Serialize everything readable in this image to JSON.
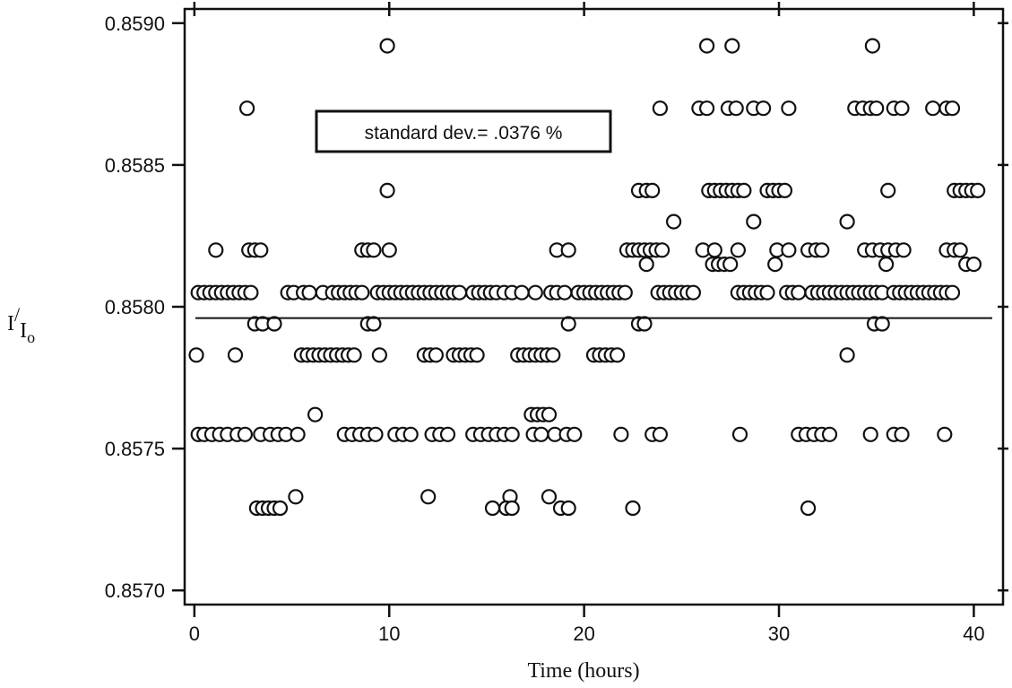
{
  "chart_data": {
    "type": "scatter",
    "title": "",
    "xlabel": "Time  (hours)",
    "ylabel": "I/Io",
    "ylabel_parts": {
      "main": "I",
      "slash": "/",
      "sub": "I",
      "subscript": "o"
    },
    "xlim": [
      -0.5,
      41.5
    ],
    "ylim": [
      0.85695,
      0.85905
    ],
    "x_ticks": [
      0,
      10,
      20,
      30,
      40
    ],
    "x_tick_labels": [
      "0",
      "10",
      "20",
      "30",
      "40"
    ],
    "y_ticks": [
      0.857,
      0.8575,
      0.858,
      0.8585,
      0.859
    ],
    "y_tick_labels": [
      "0.8570",
      "0.8575",
      "0.8580",
      "0.8585",
      "0.8590"
    ],
    "grid": false,
    "marker": "open-circle",
    "mean_line": {
      "y": 0.85796
    },
    "annotation": {
      "text": "standard dev.= .0376 %"
    },
    "series": [
      {
        "points": [
          [
            0.1,
            0.85783
          ],
          [
            2.1,
            0.85783
          ],
          [
            9.5,
            0.85783
          ],
          [
            33.5,
            0.85783
          ],
          [
            5.5,
            0.85783
          ],
          [
            5.8,
            0.85783
          ],
          [
            6.1,
            0.85783
          ],
          [
            6.4,
            0.85783
          ],
          [
            6.7,
            0.85783
          ],
          [
            7.0,
            0.85783
          ],
          [
            7.3,
            0.85783
          ],
          [
            7.6,
            0.85783
          ],
          [
            7.9,
            0.85783
          ],
          [
            8.2,
            0.85783
          ],
          [
            11.8,
            0.85783
          ],
          [
            12.1,
            0.85783
          ],
          [
            12.4,
            0.85783
          ],
          [
            13.3,
            0.85783
          ],
          [
            13.6,
            0.85783
          ],
          [
            13.9,
            0.85783
          ],
          [
            14.2,
            0.85783
          ],
          [
            14.5,
            0.85783
          ],
          [
            16.6,
            0.85783
          ],
          [
            16.9,
            0.85783
          ],
          [
            17.2,
            0.85783
          ],
          [
            17.5,
            0.85783
          ],
          [
            17.8,
            0.85783
          ],
          [
            18.1,
            0.85783
          ],
          [
            18.4,
            0.85783
          ],
          [
            20.5,
            0.85783
          ],
          [
            20.8,
            0.85783
          ],
          [
            21.1,
            0.85783
          ],
          [
            21.4,
            0.85783
          ],
          [
            21.7,
            0.85783
          ],
          [
            0.2,
            0.85805
          ],
          [
            0.5,
            0.85805
          ],
          [
            0.8,
            0.85805
          ],
          [
            1.1,
            0.85805
          ],
          [
            1.4,
            0.85805
          ],
          [
            1.7,
            0.85805
          ],
          [
            2.0,
            0.85805
          ],
          [
            2.3,
            0.85805
          ],
          [
            2.6,
            0.85805
          ],
          [
            2.9,
            0.85805
          ],
          [
            4.8,
            0.85805
          ],
          [
            5.1,
            0.85805
          ],
          [
            5.6,
            0.85805
          ],
          [
            5.9,
            0.85805
          ],
          [
            6.6,
            0.85805
          ],
          [
            7.1,
            0.85805
          ],
          [
            7.4,
            0.85805
          ],
          [
            7.7,
            0.85805
          ],
          [
            8.0,
            0.85805
          ],
          [
            8.3,
            0.85805
          ],
          [
            8.6,
            0.85805
          ],
          [
            9.4,
            0.85805
          ],
          [
            9.7,
            0.85805
          ],
          [
            10.0,
            0.85805
          ],
          [
            10.3,
            0.85805
          ],
          [
            10.6,
            0.85805
          ],
          [
            10.9,
            0.85805
          ],
          [
            11.2,
            0.85805
          ],
          [
            11.5,
            0.85805
          ],
          [
            11.8,
            0.85805
          ],
          [
            12.1,
            0.85805
          ],
          [
            12.4,
            0.85805
          ],
          [
            12.7,
            0.85805
          ],
          [
            13.0,
            0.85805
          ],
          [
            13.3,
            0.85805
          ],
          [
            13.6,
            0.85805
          ],
          [
            14.3,
            0.85805
          ],
          [
            14.6,
            0.85805
          ],
          [
            14.9,
            0.85805
          ],
          [
            15.2,
            0.85805
          ],
          [
            15.5,
            0.85805
          ],
          [
            15.9,
            0.85805
          ],
          [
            16.3,
            0.85805
          ],
          [
            16.8,
            0.85805
          ],
          [
            17.5,
            0.85805
          ],
          [
            18.3,
            0.85805
          ],
          [
            18.6,
            0.85805
          ],
          [
            19.0,
            0.85805
          ],
          [
            19.7,
            0.85805
          ],
          [
            20.0,
            0.85805
          ],
          [
            20.3,
            0.85805
          ],
          [
            20.6,
            0.85805
          ],
          [
            20.9,
            0.85805
          ],
          [
            21.2,
            0.85805
          ],
          [
            21.5,
            0.85805
          ],
          [
            21.8,
            0.85805
          ],
          [
            22.1,
            0.85805
          ],
          [
            23.8,
            0.85805
          ],
          [
            24.1,
            0.85805
          ],
          [
            24.4,
            0.85805
          ],
          [
            24.7,
            0.85805
          ],
          [
            25.0,
            0.85805
          ],
          [
            25.3,
            0.85805
          ],
          [
            25.6,
            0.85805
          ],
          [
            27.9,
            0.85805
          ],
          [
            28.2,
            0.85805
          ],
          [
            28.5,
            0.85805
          ],
          [
            28.8,
            0.85805
          ],
          [
            29.1,
            0.85805
          ],
          [
            29.4,
            0.85805
          ],
          [
            30.4,
            0.85805
          ],
          [
            30.7,
            0.85805
          ],
          [
            31.0,
            0.85805
          ],
          [
            31.7,
            0.85805
          ],
          [
            32.0,
            0.85805
          ],
          [
            32.3,
            0.85805
          ],
          [
            32.6,
            0.85805
          ],
          [
            32.9,
            0.85805
          ],
          [
            33.2,
            0.85805
          ],
          [
            33.5,
            0.85805
          ],
          [
            33.8,
            0.85805
          ],
          [
            34.1,
            0.85805
          ],
          [
            34.4,
            0.85805
          ],
          [
            34.7,
            0.85805
          ],
          [
            35.0,
            0.85805
          ],
          [
            35.3,
            0.85805
          ],
          [
            35.9,
            0.85805
          ],
          [
            36.2,
            0.85805
          ],
          [
            36.5,
            0.85805
          ],
          [
            36.8,
            0.85805
          ],
          [
            37.1,
            0.85805
          ],
          [
            37.4,
            0.85805
          ],
          [
            37.7,
            0.85805
          ],
          [
            38.0,
            0.85805
          ],
          [
            38.3,
            0.85805
          ],
          [
            38.6,
            0.85805
          ],
          [
            38.9,
            0.85805
          ],
          [
            3.1,
            0.85794
          ],
          [
            3.5,
            0.85794
          ],
          [
            4.1,
            0.85794
          ],
          [
            8.9,
            0.85794
          ],
          [
            9.2,
            0.85794
          ],
          [
            19.2,
            0.85794
          ],
          [
            22.8,
            0.85794
          ],
          [
            23.1,
            0.85794
          ],
          [
            34.9,
            0.85794
          ],
          [
            35.3,
            0.85794
          ],
          [
            1.1,
            0.8582
          ],
          [
            2.8,
            0.8582
          ],
          [
            3.1,
            0.8582
          ],
          [
            3.4,
            0.8582
          ],
          [
            8.6,
            0.8582
          ],
          [
            8.9,
            0.8582
          ],
          [
            9.2,
            0.8582
          ],
          [
            10.0,
            0.8582
          ],
          [
            18.6,
            0.8582
          ],
          [
            19.2,
            0.8582
          ],
          [
            22.2,
            0.8582
          ],
          [
            22.5,
            0.8582
          ],
          [
            22.8,
            0.8582
          ],
          [
            23.1,
            0.8582
          ],
          [
            23.4,
            0.8582
          ],
          [
            23.7,
            0.8582
          ],
          [
            24.0,
            0.8582
          ],
          [
            26.1,
            0.8582
          ],
          [
            26.7,
            0.8582
          ],
          [
            27.9,
            0.8582
          ],
          [
            29.9,
            0.8582
          ],
          [
            30.5,
            0.8582
          ],
          [
            31.5,
            0.8582
          ],
          [
            31.9,
            0.8582
          ],
          [
            32.2,
            0.8582
          ],
          [
            34.4,
            0.8582
          ],
          [
            34.8,
            0.8582
          ],
          [
            35.2,
            0.8582
          ],
          [
            35.6,
            0.8582
          ],
          [
            36.0,
            0.8582
          ],
          [
            36.4,
            0.8582
          ],
          [
            38.6,
            0.8582
          ],
          [
            39.0,
            0.8582
          ],
          [
            39.3,
            0.8582
          ],
          [
            23.2,
            0.85815
          ],
          [
            26.6,
            0.85815
          ],
          [
            26.9,
            0.85815
          ],
          [
            27.2,
            0.85815
          ],
          [
            27.5,
            0.85815
          ],
          [
            29.8,
            0.85815
          ],
          [
            35.5,
            0.85815
          ],
          [
            39.6,
            0.85815
          ],
          [
            40.0,
            0.85815
          ],
          [
            24.6,
            0.8583
          ],
          [
            28.7,
            0.8583
          ],
          [
            33.5,
            0.8583
          ],
          [
            9.9,
            0.85841
          ],
          [
            22.8,
            0.85841
          ],
          [
            23.2,
            0.85841
          ],
          [
            23.5,
            0.85841
          ],
          [
            26.4,
            0.85841
          ],
          [
            26.7,
            0.85841
          ],
          [
            27.0,
            0.85841
          ],
          [
            27.3,
            0.85841
          ],
          [
            27.6,
            0.85841
          ],
          [
            27.9,
            0.85841
          ],
          [
            28.2,
            0.85841
          ],
          [
            29.4,
            0.85841
          ],
          [
            29.7,
            0.85841
          ],
          [
            30.0,
            0.85841
          ],
          [
            30.3,
            0.85841
          ],
          [
            35.6,
            0.85841
          ],
          [
            39.0,
            0.85841
          ],
          [
            39.3,
            0.85841
          ],
          [
            39.6,
            0.85841
          ],
          [
            39.9,
            0.85841
          ],
          [
            40.2,
            0.85841
          ],
          [
            2.7,
            0.8587
          ],
          [
            23.9,
            0.8587
          ],
          [
            25.9,
            0.8587
          ],
          [
            26.3,
            0.8587
          ],
          [
            27.4,
            0.8587
          ],
          [
            27.8,
            0.8587
          ],
          [
            28.7,
            0.8587
          ],
          [
            29.2,
            0.8587
          ],
          [
            30.5,
            0.8587
          ],
          [
            33.9,
            0.8587
          ],
          [
            34.3,
            0.8587
          ],
          [
            34.7,
            0.8587
          ],
          [
            35.0,
            0.8587
          ],
          [
            35.9,
            0.8587
          ],
          [
            36.3,
            0.8587
          ],
          [
            37.9,
            0.8587
          ],
          [
            38.6,
            0.8587
          ],
          [
            38.9,
            0.8587
          ],
          [
            9.9,
            0.85892
          ],
          [
            26.3,
            0.85892
          ],
          [
            27.6,
            0.85892
          ],
          [
            34.8,
            0.85892
          ],
          [
            0.2,
            0.85755
          ],
          [
            0.5,
            0.85755
          ],
          [
            0.9,
            0.85755
          ],
          [
            1.3,
            0.85755
          ],
          [
            1.7,
            0.85755
          ],
          [
            2.2,
            0.85755
          ],
          [
            2.6,
            0.85755
          ],
          [
            3.4,
            0.85755
          ],
          [
            3.9,
            0.85755
          ],
          [
            4.3,
            0.85755
          ],
          [
            4.7,
            0.85755
          ],
          [
            5.3,
            0.85755
          ],
          [
            7.7,
            0.85755
          ],
          [
            8.1,
            0.85755
          ],
          [
            8.5,
            0.85755
          ],
          [
            8.9,
            0.85755
          ],
          [
            9.3,
            0.85755
          ],
          [
            10.3,
            0.85755
          ],
          [
            10.7,
            0.85755
          ],
          [
            11.1,
            0.85755
          ],
          [
            12.2,
            0.85755
          ],
          [
            12.6,
            0.85755
          ],
          [
            13.0,
            0.85755
          ],
          [
            14.3,
            0.85755
          ],
          [
            14.7,
            0.85755
          ],
          [
            15.1,
            0.85755
          ],
          [
            15.5,
            0.85755
          ],
          [
            15.9,
            0.85755
          ],
          [
            16.3,
            0.85755
          ],
          [
            17.4,
            0.85755
          ],
          [
            17.8,
            0.85755
          ],
          [
            18.5,
            0.85755
          ],
          [
            19.1,
            0.85755
          ],
          [
            19.5,
            0.85755
          ],
          [
            21.9,
            0.85755
          ],
          [
            23.5,
            0.85755
          ],
          [
            23.9,
            0.85755
          ],
          [
            28.0,
            0.85755
          ],
          [
            31.0,
            0.85755
          ],
          [
            31.4,
            0.85755
          ],
          [
            31.8,
            0.85755
          ],
          [
            32.2,
            0.85755
          ],
          [
            32.6,
            0.85755
          ],
          [
            34.7,
            0.85755
          ],
          [
            35.9,
            0.85755
          ],
          [
            36.3,
            0.85755
          ],
          [
            38.5,
            0.85755
          ],
          [
            6.2,
            0.85762
          ],
          [
            17.3,
            0.85762
          ],
          [
            17.6,
            0.85762
          ],
          [
            17.9,
            0.85762
          ],
          [
            18.2,
            0.85762
          ],
          [
            5.2,
            0.85733
          ],
          [
            12.0,
            0.85733
          ],
          [
            16.2,
            0.85733
          ],
          [
            18.2,
            0.85733
          ],
          [
            3.2,
            0.85729
          ],
          [
            3.5,
            0.85729
          ],
          [
            3.8,
            0.85729
          ],
          [
            4.1,
            0.85729
          ],
          [
            4.4,
            0.85729
          ],
          [
            15.3,
            0.85729
          ],
          [
            16.0,
            0.85729
          ],
          [
            16.3,
            0.85729
          ],
          [
            18.8,
            0.85729
          ],
          [
            19.2,
            0.85729
          ],
          [
            22.5,
            0.85729
          ],
          [
            31.5,
            0.85729
          ]
        ]
      }
    ]
  }
}
